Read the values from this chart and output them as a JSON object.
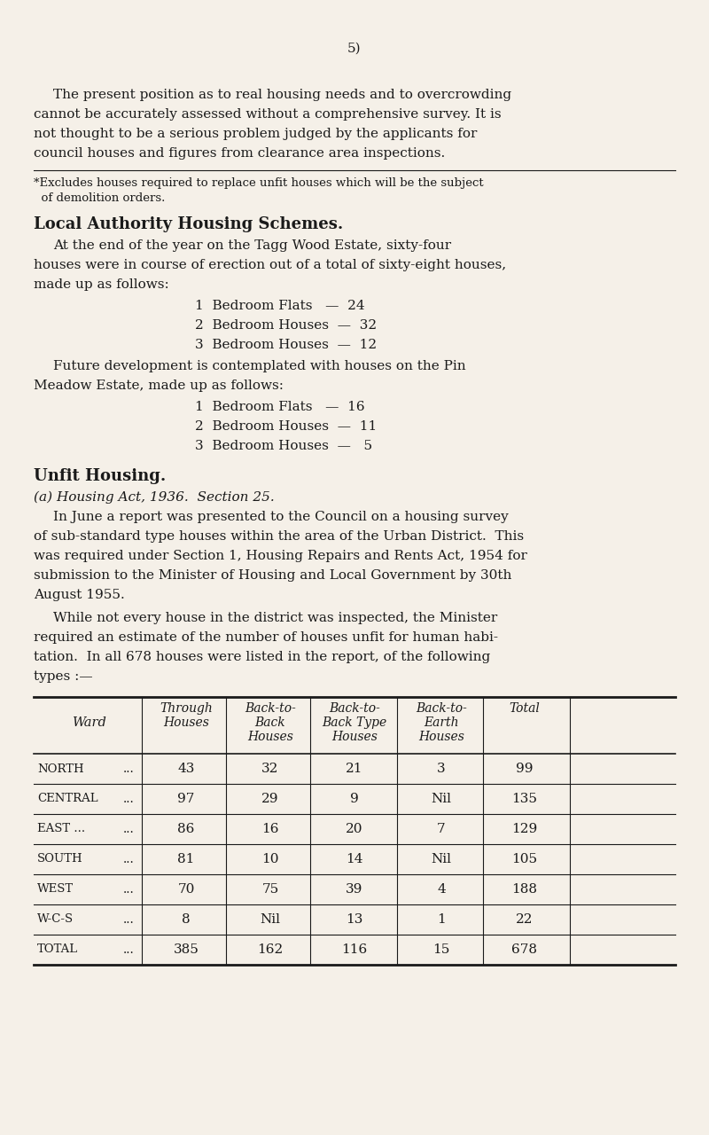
{
  "bg_color": "#f5f0e8",
  "text_color": "#1a1a1a",
  "page_number": "5)",
  "para1": "The present position as to real housing needs and to overcrowding\ncannot be accurately assessed without a comprehensive survey. It is\nnot thought to be a serious problem judged by the applicants for\ncouncil houses and figures from clearance area inspections.",
  "footnote": "*Excludes houses required to replace unfit houses which will be the subject\n  of demolition orders.",
  "section1_title": "Local Authority Housing Schemes.",
  "section1_para": "At the end of the year on the Tagg Wood Estate, sixty-four\nhouses were in course of erection out of a total of sixty-eight houses,\nmade up as follows:",
  "tagg_items": [
    "1  Bedroom Flats   —  24",
    "2  Bedroom Houses  —  32",
    "3  Bedroom Houses  —  12"
  ],
  "section1_para2": "Future development is contemplated with houses on the Pin\nMeadow Estate, made up as follows:",
  "pin_items": [
    "1  Bedroom Flats   —  16",
    "2  Bedroom Houses  —  11",
    "3  Bedroom Houses  —   5"
  ],
  "section2_title": "Unfit Housing.",
  "section2_subtitle": "(a) Housing Act, 1936.  Section 25.",
  "section2_para": "In June a report was presented to the Council on a housing survey\nof sub-standard type houses within the area of the Urban District.  This\nwas required under Section 1, Housing Repairs and Rents Act, 1954 for\nsubmission to the Minister of Housing and Local Government by 30th\nAugust 1955.",
  "section2_para2": "While not every house in the district was inspected, the Minister\nrequired an estimate of the number of houses unfit for human habi-\ntation.  In all 678 houses were listed in the report, of the following\ntypes :—",
  "table_headers": [
    "Ward",
    "Through\nHouses",
    "Back-to-\nBack\nHouses",
    "Back-to-\nBack Type\nHouses",
    "Back-to-\nEarth\nHouses",
    "Total"
  ],
  "table_rows": [
    [
      "North",
      "...",
      "43",
      "32",
      "21",
      "3",
      "99"
    ],
    [
      "Central",
      "...",
      "97",
      "29",
      "9",
      "Nil",
      "135"
    ],
    [
      "East ...",
      "...",
      "86",
      "16",
      "20",
      "7",
      "129"
    ],
    [
      "South",
      "...",
      "81",
      "10",
      "14",
      "Nil",
      "105"
    ],
    [
      "West",
      "...",
      "70",
      "75",
      "39",
      "4",
      "188"
    ],
    [
      "W-C-S",
      "...",
      "8",
      "Nil",
      "13",
      "1",
      "22"
    ],
    [
      "Total",
      "...",
      "385",
      "162",
      "116",
      "15",
      "678"
    ]
  ]
}
